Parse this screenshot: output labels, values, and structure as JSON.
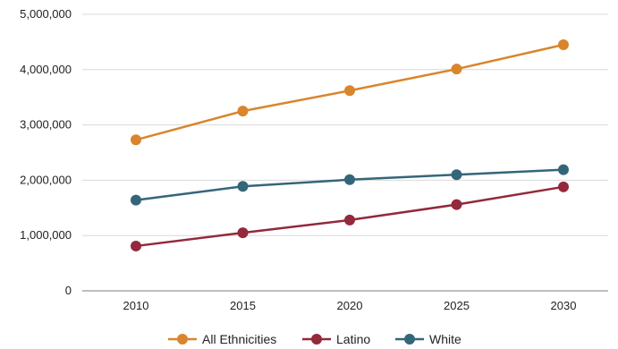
{
  "chart_data": {
    "type": "line",
    "title": "",
    "xlabel": "",
    "ylabel": "",
    "categories": [
      "2010",
      "2015",
      "2020",
      "2025",
      "2030"
    ],
    "ylim": [
      0,
      5000000
    ],
    "yticks": [
      0,
      1000000,
      2000000,
      3000000,
      4000000,
      5000000
    ],
    "ytick_labels": [
      "0",
      "1,000,000",
      "2,000,000",
      "3,000,000",
      "4,000,000",
      "5,000,000"
    ],
    "grid": true,
    "legend_position": "bottom",
    "series": [
      {
        "name": "All Ethnicities",
        "color": "#d9852c",
        "values": [
          2730000,
          3250000,
          3620000,
          4010000,
          4450000
        ]
      },
      {
        "name": "Latino",
        "color": "#93293a",
        "values": [
          810000,
          1050000,
          1280000,
          1560000,
          1880000
        ]
      },
      {
        "name": "White",
        "color": "#346679",
        "values": [
          1640000,
          1890000,
          2010000,
          2100000,
          2190000
        ]
      }
    ]
  }
}
